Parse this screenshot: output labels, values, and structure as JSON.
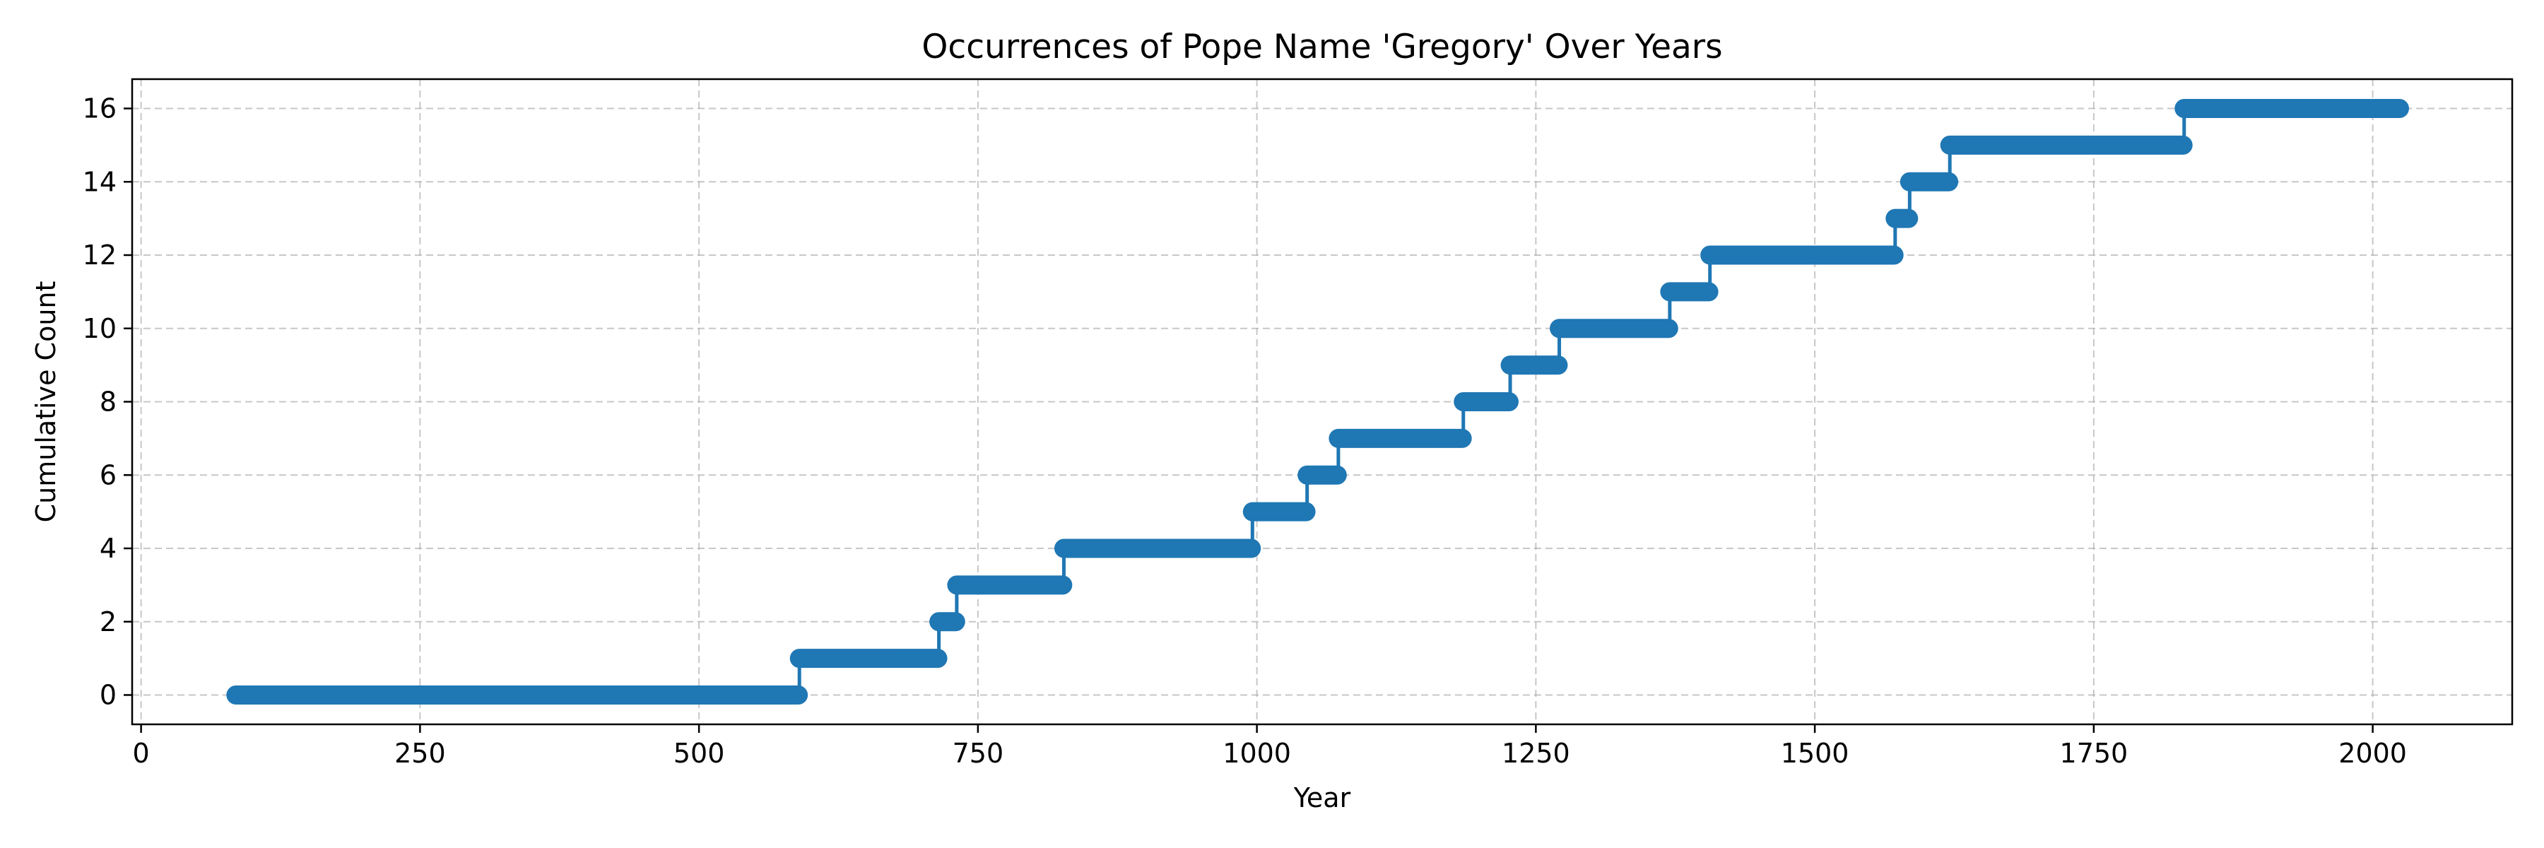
{
  "chart_data": {
    "type": "line",
    "title": "Occurrences of Pope Name 'Gregory' Over Years",
    "xlabel": "Year",
    "ylabel": "Cumulative Count",
    "xlim": [
      -8,
      2125
    ],
    "ylim": [
      -0.8,
      16.8
    ],
    "xticks": [
      0,
      250,
      500,
      750,
      1000,
      1250,
      1500,
      1750,
      2000
    ],
    "yticks": [
      0,
      2,
      4,
      6,
      8,
      10,
      12,
      14,
      16
    ],
    "grid": true,
    "step_style": "post",
    "series_color": "#1f77b4",
    "start_year": 85,
    "end_year": 2025,
    "x": [
      85,
      590,
      715,
      731,
      827,
      996,
      1045,
      1073,
      1185,
      1227,
      1271,
      1370,
      1406,
      1572,
      1585,
      1621,
      1831,
      2025
    ],
    "y": [
      0,
      1,
      2,
      3,
      4,
      5,
      6,
      7,
      8,
      9,
      10,
      11,
      12,
      13,
      14,
      15,
      16,
      16
    ]
  }
}
